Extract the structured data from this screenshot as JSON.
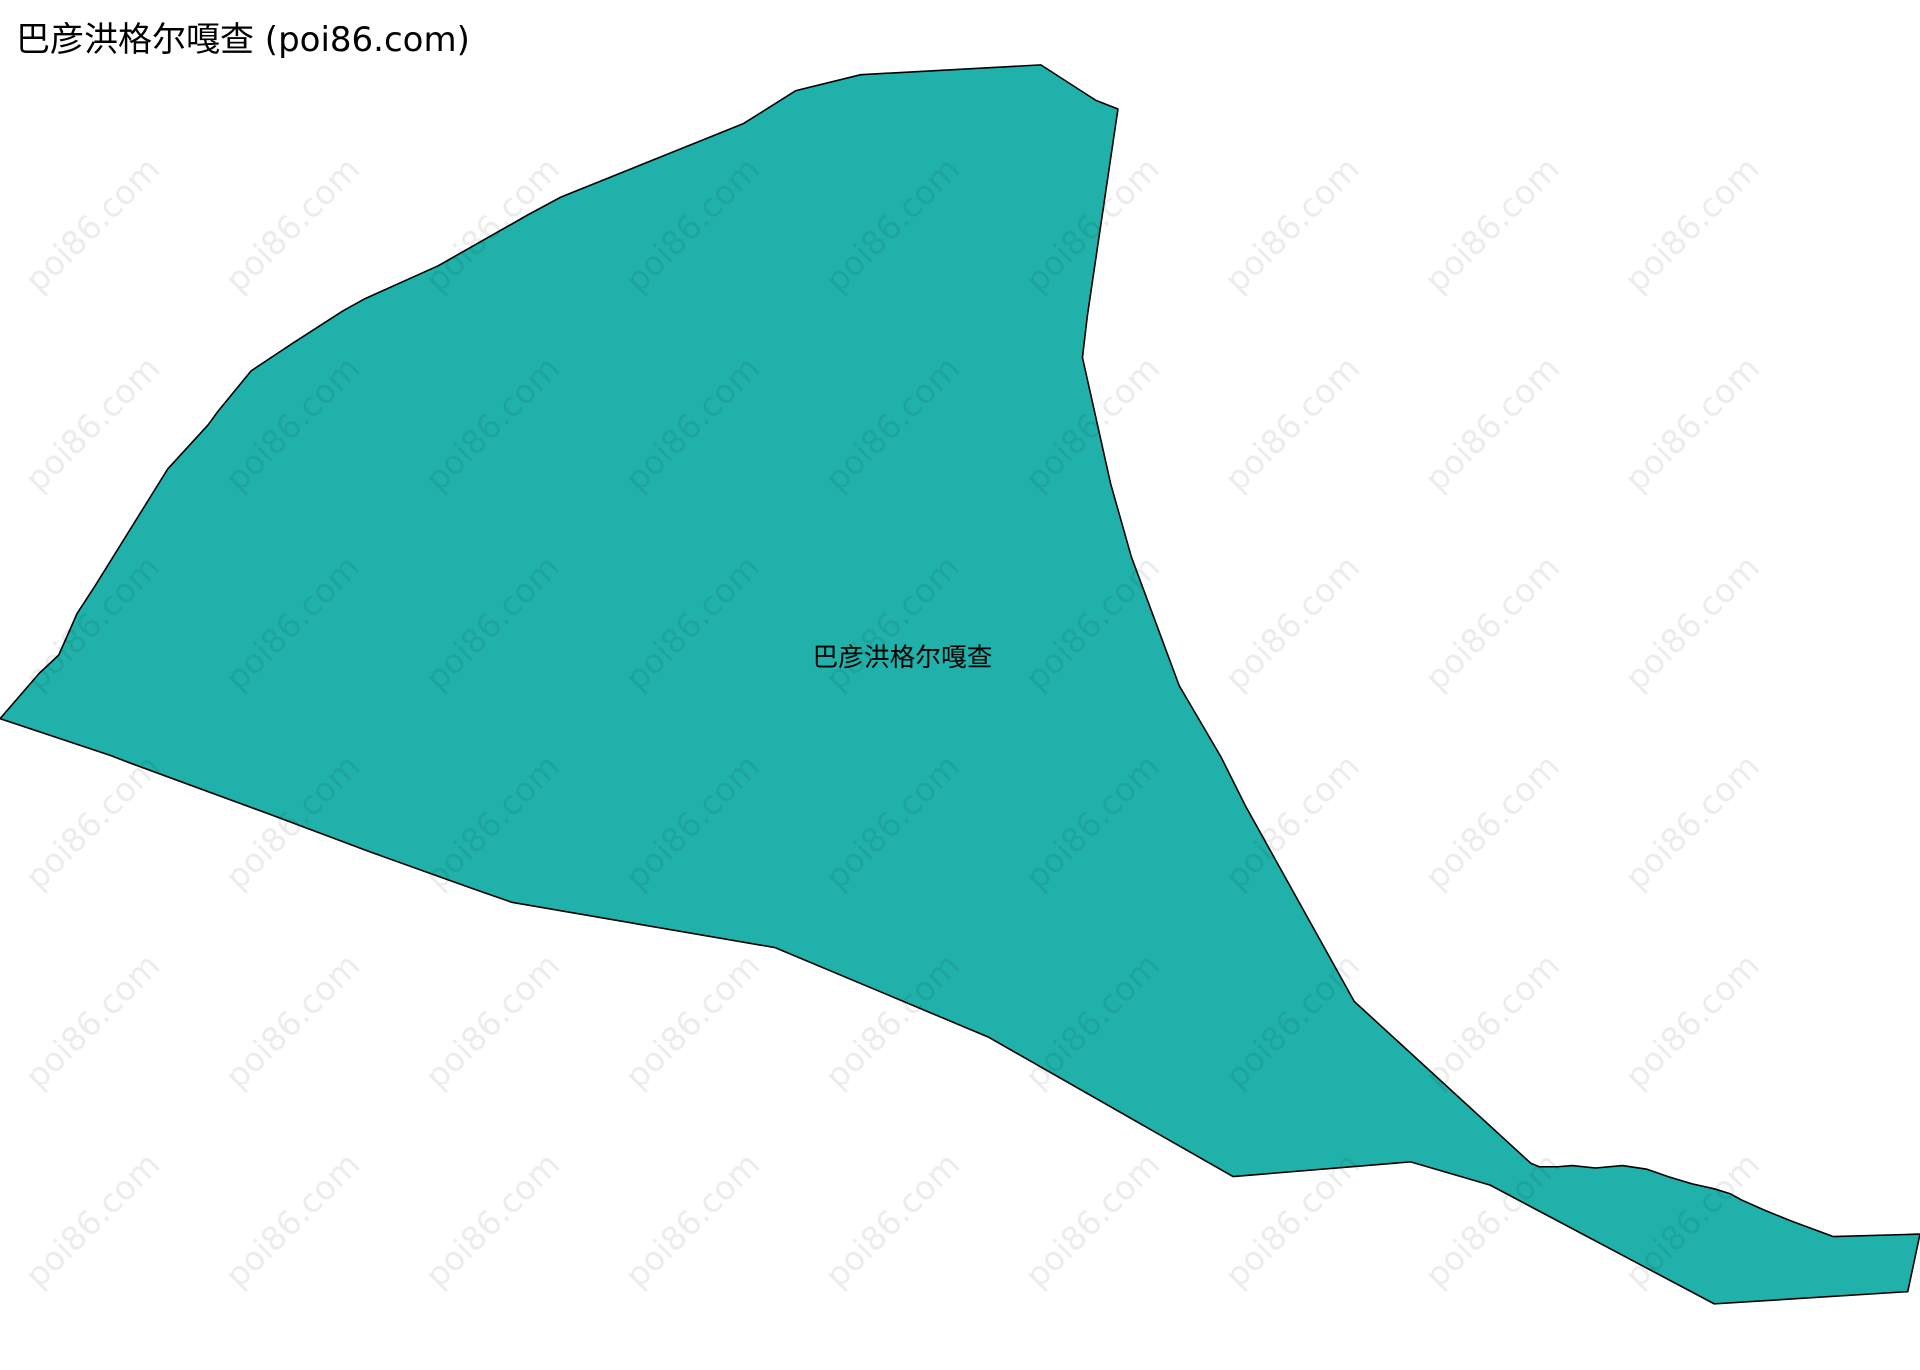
{
  "title": "巴彦洪格尔嘎查 (poi86.com)",
  "region": {
    "label": "巴彦洪格尔嘎查",
    "fill_color": "#20b2aa",
    "stroke_color": "#000000"
  },
  "watermark": "poi86.com"
}
